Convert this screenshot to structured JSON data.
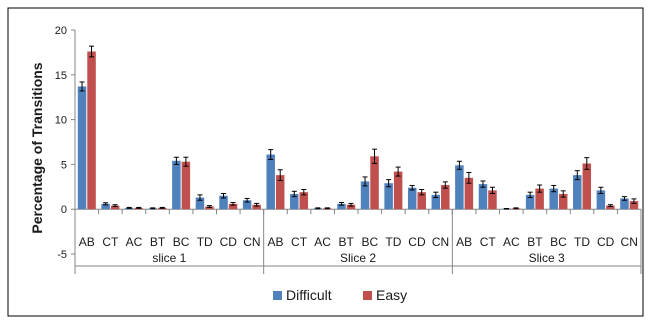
{
  "chart_data": {
    "type": "bar",
    "title": "",
    "xlabel": "",
    "ylabel": "Percentage of Transitions",
    "ylim": [
      -5,
      20
    ],
    "yticks": [
      -5,
      0,
      5,
      10,
      15,
      20
    ],
    "grid": false,
    "legend_position": "bottom",
    "groups": [
      {
        "label": "slice 1",
        "categories": [
          "AB",
          "CT",
          "AC",
          "BT",
          "BC",
          "TD",
          "CD",
          "CN"
        ]
      },
      {
        "label": "Slice 2",
        "categories": [
          "AB",
          "CT",
          "AC",
          "BT",
          "BC",
          "TD",
          "CD",
          "CN"
        ]
      },
      {
        "label": "Slice 3",
        "categories": [
          "AB",
          "CT",
          "AC",
          "BT",
          "BC",
          "TD",
          "CD",
          "CN"
        ]
      }
    ],
    "series": [
      {
        "name": "Difficult",
        "color": "#4f81bd",
        "values": [
          13.7,
          0.6,
          0.15,
          0.1,
          5.4,
          1.3,
          1.5,
          1.0,
          6.1,
          1.7,
          0.1,
          0.6,
          3.1,
          2.9,
          2.4,
          1.6,
          4.9,
          2.8,
          0.05,
          1.6,
          2.3,
          3.8,
          2.1,
          1.2
        ],
        "errors": [
          0.5,
          0.12,
          0.05,
          0.05,
          0.4,
          0.3,
          0.25,
          0.2,
          0.55,
          0.3,
          0.05,
          0.15,
          0.5,
          0.4,
          0.25,
          0.3,
          0.45,
          0.35,
          0.03,
          0.3,
          0.35,
          0.5,
          0.35,
          0.2
        ]
      },
      {
        "name": "Easy",
        "color": "#c0504d",
        "values": [
          17.6,
          0.4,
          0.15,
          0.15,
          5.3,
          0.3,
          0.6,
          0.5,
          3.8,
          1.9,
          0.1,
          0.5,
          5.9,
          4.2,
          1.9,
          2.7,
          3.5,
          2.1,
          0.1,
          2.3,
          1.7,
          5.1,
          0.4,
          0.9
        ],
        "errors": [
          0.6,
          0.1,
          0.05,
          0.05,
          0.5,
          0.1,
          0.15,
          0.15,
          0.6,
          0.3,
          0.05,
          0.15,
          0.8,
          0.5,
          0.3,
          0.35,
          0.6,
          0.35,
          0.05,
          0.4,
          0.35,
          0.65,
          0.1,
          0.25
        ]
      }
    ]
  }
}
